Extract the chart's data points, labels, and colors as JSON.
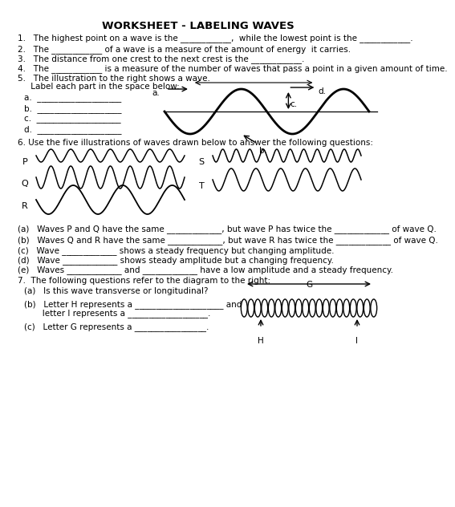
{
  "title": "WORKSHEET - LABELING WAVES",
  "bg_color": "#ffffff",
  "q1": "1.   The highest point on a wave is the ____________,  while the lowest point is the ____________.",
  "q2": "2.   The ____________ of a wave is a measure of the amount of energy  it carries.",
  "q3": "3.   The distance from one crest to the next crest is the ____________.",
  "q4": "4.   The ____________ is a measure of the number of waves that pass a point in a given amount of time.",
  "q5a": "5.   The illustration to the right shows a wave.",
  "q5b": "     Label each part in the space below:",
  "labels_5": [
    "a.  ____________________",
    "b.  ____________________",
    "c.  ____________________",
    "d.  ____________________"
  ],
  "q6_header": "6. Use the five illustrations of waves drawn below to answer the following questions:",
  "q6a": "(a)   Waves P and Q have the same _____________, but wave P has twice the _____________ of wave Q.",
  "q6b": "(b)   Waves Q and R have the same _____________, but wave R has twice the _____________ of wave Q.",
  "q6c": "(c)   Wave _____________ shows a steady frequency but changing amplitude.",
  "q6d": "(d)   Wave _____________ shows steady amplitude but a changing frequency.",
  "q6e": "(e)   Waves _____________ and _____________ have a low amplitude and a steady frequency.",
  "q7_header": "7.  The following questions refer to the diagram to the right:",
  "q7a": "(a)   Is this wave transverse or longitudinal?",
  "q7b1": "(b)   Letter H represents a _____________________ and",
  "q7b2": "       letter I represents a ___________________.",
  "q7c": "(c)   Letter G represents a _________________."
}
